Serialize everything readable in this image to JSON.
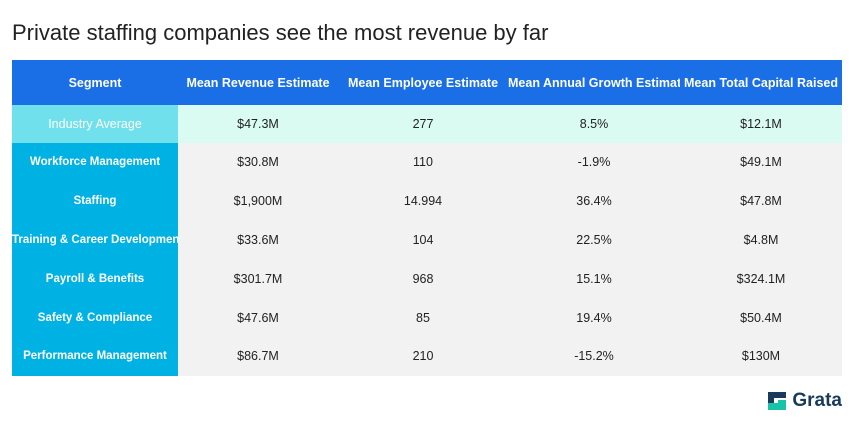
{
  "title": "Private staffing companies see the most revenue by far",
  "brand": {
    "name": "Grata",
    "icon": "grata-logo-icon",
    "color": "#1a3a5c"
  },
  "colors": {
    "header_bg": "#1a6fe6",
    "segment_bg": "#00b2e3",
    "average_segment_bg": "#6fe0ec",
    "average_row_bg": "#d9fbf2",
    "row_bg": "#f2f2f2"
  },
  "chart_data": {
    "type": "table",
    "title": "Private staffing companies see the most revenue by far",
    "columns": [
      "Segment",
      "Mean Revenue Estimate",
      "Mean Employee Estimate",
      "Mean Annual Growth Estimate",
      "Mean Total Capital Raised"
    ],
    "rows": [
      [
        "Industry Average",
        "$47.3M",
        "277",
        "8.5%",
        "$12.1M"
      ],
      [
        "Workforce Management",
        "$30.8M",
        "110",
        "-1.9%",
        "$49.1M"
      ],
      [
        "Staffing",
        "$1,900M",
        "14.994",
        "36.4%",
        "$47.8M"
      ],
      [
        "Training & Career Development",
        "$33.6M",
        "104",
        "22.5%",
        "$4.8M"
      ],
      [
        "Payroll & Benefits",
        "$301.7M",
        "968",
        "15.1%",
        "$324.1M"
      ],
      [
        "Safety & Compliance",
        "$47.6M",
        "85",
        "19.4%",
        "$50.4M"
      ],
      [
        "Performance Management",
        "$86.7M",
        "210",
        "-15.2%",
        "$130M"
      ]
    ]
  }
}
